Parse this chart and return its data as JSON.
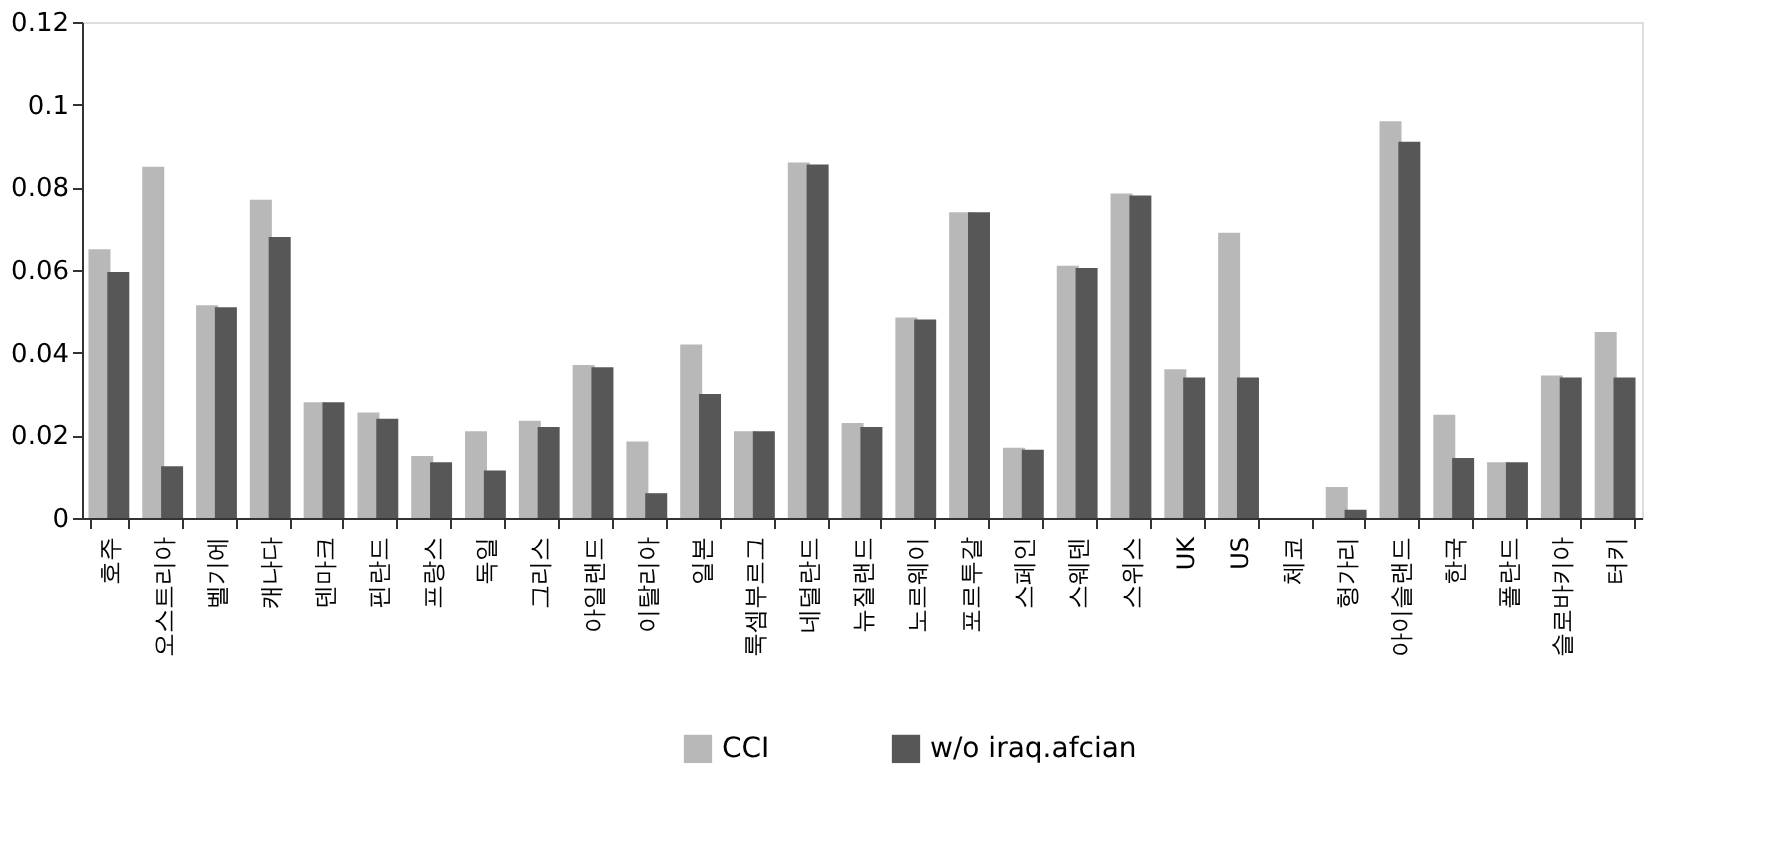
{
  "chart_data": {
    "type": "bar",
    "categories": [
      "호주",
      "오스트리아",
      "벨기에",
      "캐나다",
      "덴마크",
      "핀란드",
      "프랑스",
      "독일",
      "그리스",
      "아일랜드",
      "이탈리아",
      "일본",
      "룩셈부르그",
      "네덜란드",
      "뉴질랜드",
      "노르웨이",
      "포르투갈",
      "스페인",
      "스웨덴",
      "스위스",
      "UK",
      "US",
      "체코",
      "헝가리",
      "아이슬랜드",
      "한국",
      "폴란드",
      "슬로바키아",
      "터키"
    ],
    "series": [
      {
        "name": "CCI",
        "color": "#b8b8b8",
        "values": [
          0.065,
          0.085,
          0.0515,
          0.077,
          0.028,
          0.0255,
          0.015,
          0.021,
          0.0235,
          0.037,
          0.0185,
          0.042,
          0.021,
          0.086,
          0.023,
          0.0485,
          0.074,
          0.017,
          0.061,
          0.0785,
          0.036,
          0.069,
          null,
          0.0075,
          0.096,
          0.025,
          0.0135,
          0.0345,
          0.045
        ]
      },
      {
        "name": "w/o iraq.afcian",
        "color": "#575757",
        "values": [
          0.0595,
          0.0125,
          0.051,
          0.068,
          0.028,
          0.024,
          0.0135,
          0.0115,
          0.022,
          0.0365,
          0.006,
          0.03,
          0.021,
          0.0855,
          0.022,
          0.048,
          0.074,
          0.0165,
          0.0605,
          0.078,
          0.034,
          0.034,
          null,
          0.002,
          0.091,
          0.0145,
          0.0135,
          0.034,
          0.034
        ]
      }
    ],
    "ylim": [
      0,
      0.12
    ],
    "yticks": [
      0,
      0.02,
      0.04,
      0.06,
      0.08,
      0.1,
      0.12
    ],
    "grid": false,
    "legend": "bottom"
  }
}
